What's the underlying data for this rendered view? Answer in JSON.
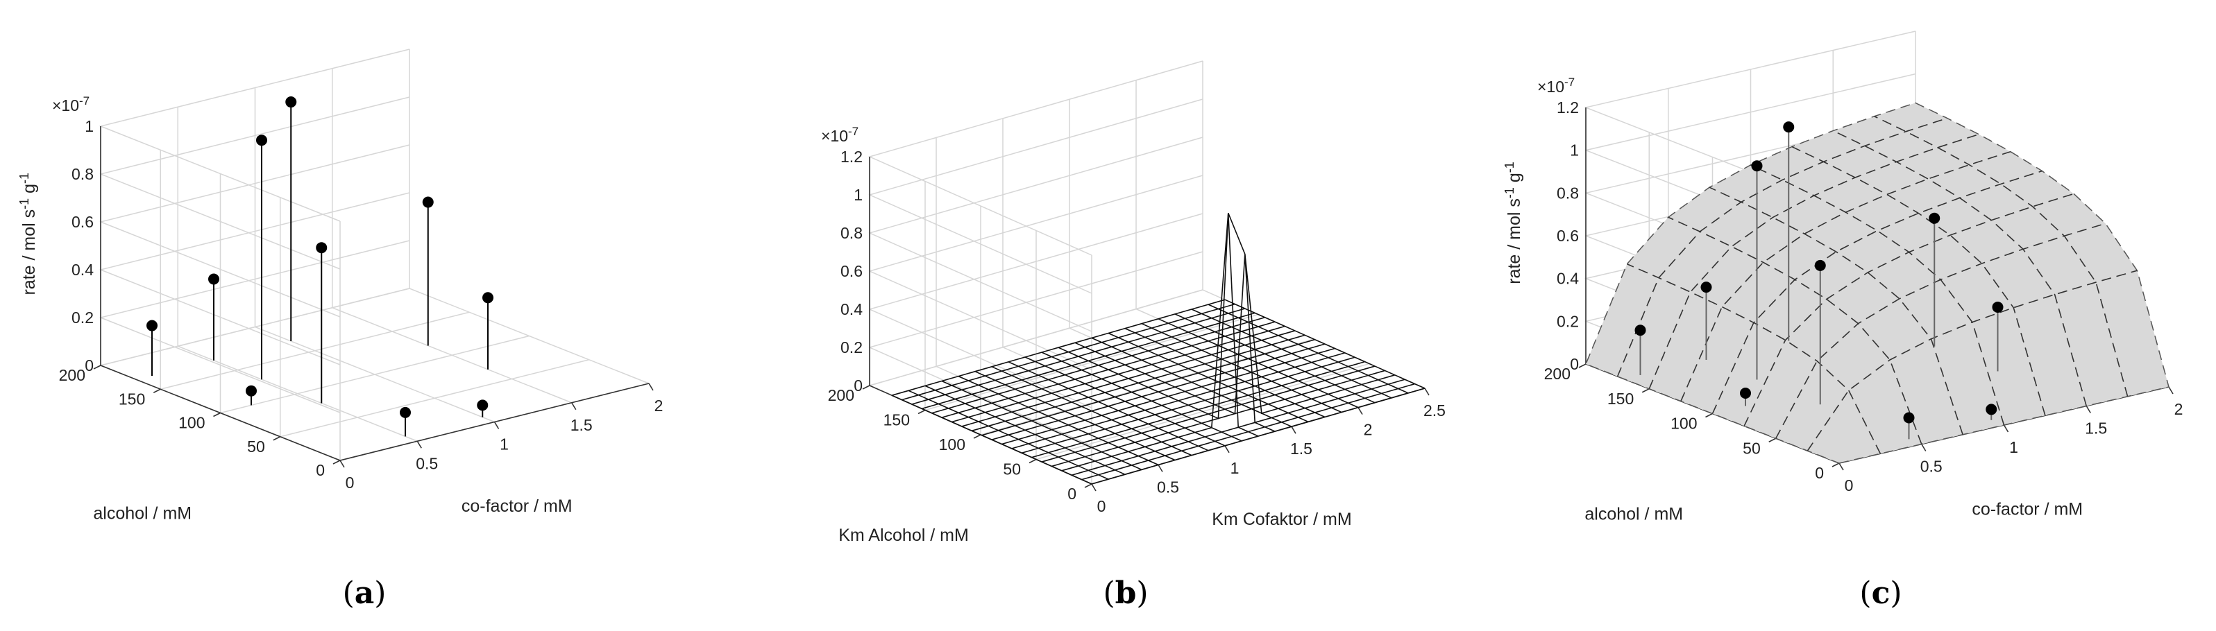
{
  "chart_data": [
    {
      "panel": "(a)",
      "type": "scatter3d-stem",
      "title": "",
      "xlabel": "co-factor / mM",
      "ylabel": "alcohol / mM",
      "zlabel": "rate / mol s-1 g-1",
      "zexponent": "×10-7",
      "xlim": [
        0,
        2
      ],
      "ylim": [
        0,
        200
      ],
      "zlim": [
        0,
        1
      ],
      "xticks": [
        "0",
        "0.5",
        "1",
        "1.5",
        "2"
      ],
      "yticks": [
        "0",
        "50",
        "100",
        "150",
        "200"
      ],
      "zticks": [
        "0",
        "0.2",
        "0.4",
        "0.6",
        "0.8",
        "1"
      ],
      "points": [
        {
          "x": 0.1,
          "y": 170,
          "z": 0.21
        },
        {
          "x": 0.2,
          "y": 100,
          "z": 0.06
        },
        {
          "x": 0.5,
          "y": 170,
          "z": 0.34
        },
        {
          "x": 0.5,
          "y": 130,
          "z": 1.0
        },
        {
          "x": 0.5,
          "y": 80,
          "z": 0.65
        },
        {
          "x": 1.0,
          "y": 170,
          "z": 1.0
        },
        {
          "x": 0.5,
          "y": 10,
          "z": 0.1
        },
        {
          "x": 1.5,
          "y": 120,
          "z": 0.6
        },
        {
          "x": 1.0,
          "y": 10,
          "z": 0.05
        },
        {
          "x": 1.5,
          "y": 70,
          "z": 0.3
        }
      ]
    },
    {
      "panel": "(b)",
      "type": "surface3d-mesh",
      "title": "",
      "xlabel": "Km Cofaktor / mM",
      "ylabel": "Km Alcohol / mM",
      "zlabel": "",
      "zexponent": "×10-7",
      "xlim": [
        0,
        2.5
      ],
      "ylim": [
        0,
        200
      ],
      "zlim": [
        0,
        1.2
      ],
      "xticks": [
        "0",
        "0.5",
        "1",
        "1.5",
        "2",
        "2.5"
      ],
      "yticks": [
        "0",
        "50",
        "100",
        "150",
        "200"
      ],
      "zticks": [
        "0",
        "0.2",
        "0.4",
        "0.6",
        "0.8",
        "1",
        "1.2"
      ],
      "grid_n": 20,
      "peaks": [
        {
          "i": 3,
          "j": 11,
          "z": 0.86
        },
        {
          "i": 3,
          "j": 10,
          "z": 1.1
        }
      ]
    },
    {
      "panel": "(c)",
      "type": "surface3d-fit-with-stems",
      "title": "",
      "xlabel": "co-factor / mM",
      "ylabel": "alcohol / mM",
      "zlabel": "rate / mol s-1 g-1",
      "zexponent": "×10-7",
      "xlim": [
        0,
        2
      ],
      "ylim": [
        0,
        200
      ],
      "zlim": [
        0,
        1.2
      ],
      "xticks": [
        "0",
        "0.5",
        "1",
        "1.5",
        "2"
      ],
      "yticks": [
        "0",
        "50",
        "100",
        "150",
        "200"
      ],
      "zticks": [
        "0",
        "0.2",
        "0.4",
        "0.6",
        "0.8",
        "1",
        "1.2"
      ],
      "points": [
        {
          "x": 0.1,
          "y": 170,
          "z": 0.21
        },
        {
          "x": 0.2,
          "y": 100,
          "z": 0.06
        },
        {
          "x": 0.5,
          "y": 170,
          "z": 0.34
        },
        {
          "x": 0.5,
          "y": 130,
          "z": 1.0
        },
        {
          "x": 0.5,
          "y": 80,
          "z": 0.65
        },
        {
          "x": 1.0,
          "y": 170,
          "z": 1.0
        },
        {
          "x": 0.5,
          "y": 10,
          "z": 0.1
        },
        {
          "x": 1.5,
          "y": 120,
          "z": 0.6
        },
        {
          "x": 1.0,
          "y": 10,
          "z": 0.05
        },
        {
          "x": 1.5,
          "y": 70,
          "z": 0.3
        }
      ]
    }
  ],
  "labels": {
    "a": {
      "open": "(",
      "letter": "a",
      "close": ")"
    },
    "b": {
      "open": "(",
      "letter": "b",
      "close": ")"
    },
    "c": {
      "open": "(",
      "letter": "c",
      "close": ")"
    }
  }
}
